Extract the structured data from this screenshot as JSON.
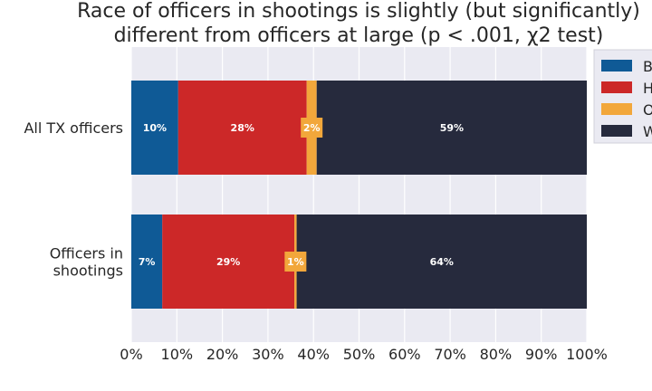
{
  "chart_data": {
    "type": "bar",
    "orientation": "horizontal",
    "stacked": true,
    "title_lines": [
      "Race of officers in shootings is slightly (but significantly)",
      "different from officers at large (p < .001, χ2 test)"
    ],
    "categories": [
      "All TX officers",
      "Officers in shootings"
    ],
    "category_lines": [
      [
        "All TX officers"
      ],
      [
        "Officers in",
        "shootings"
      ]
    ],
    "series": [
      {
        "name": "B",
        "color": "#0f5a96",
        "values": [
          10.3,
          6.8
        ],
        "labels": [
          "10%",
          "7%"
        ]
      },
      {
        "name": "H",
        "color": "#cc2828",
        "values": [
          28.2,
          29.0
        ],
        "labels": [
          "28%",
          "29%"
        ]
      },
      {
        "name": "O",
        "color": "#f2a73b",
        "values": [
          2.2,
          0.5
        ],
        "labels": [
          "2%",
          "1%"
        ]
      },
      {
        "name": "W",
        "color": "#262a3d",
        "values": [
          59.3,
          63.7
        ],
        "labels": [
          "59%",
          "64%"
        ]
      }
    ],
    "xlim": [
      0,
      100
    ],
    "xticks": [
      0,
      10,
      20,
      30,
      40,
      50,
      60,
      70,
      80,
      90,
      100
    ],
    "xtick_labels": [
      "0%",
      "10%",
      "20%",
      "30%",
      "40%",
      "50%",
      "60%",
      "70%",
      "80%",
      "90%",
      "100%"
    ],
    "grid": true,
    "legend_position": "top-right",
    "plot_background": "#eaeaf2",
    "grid_color": "#ffffff"
  }
}
